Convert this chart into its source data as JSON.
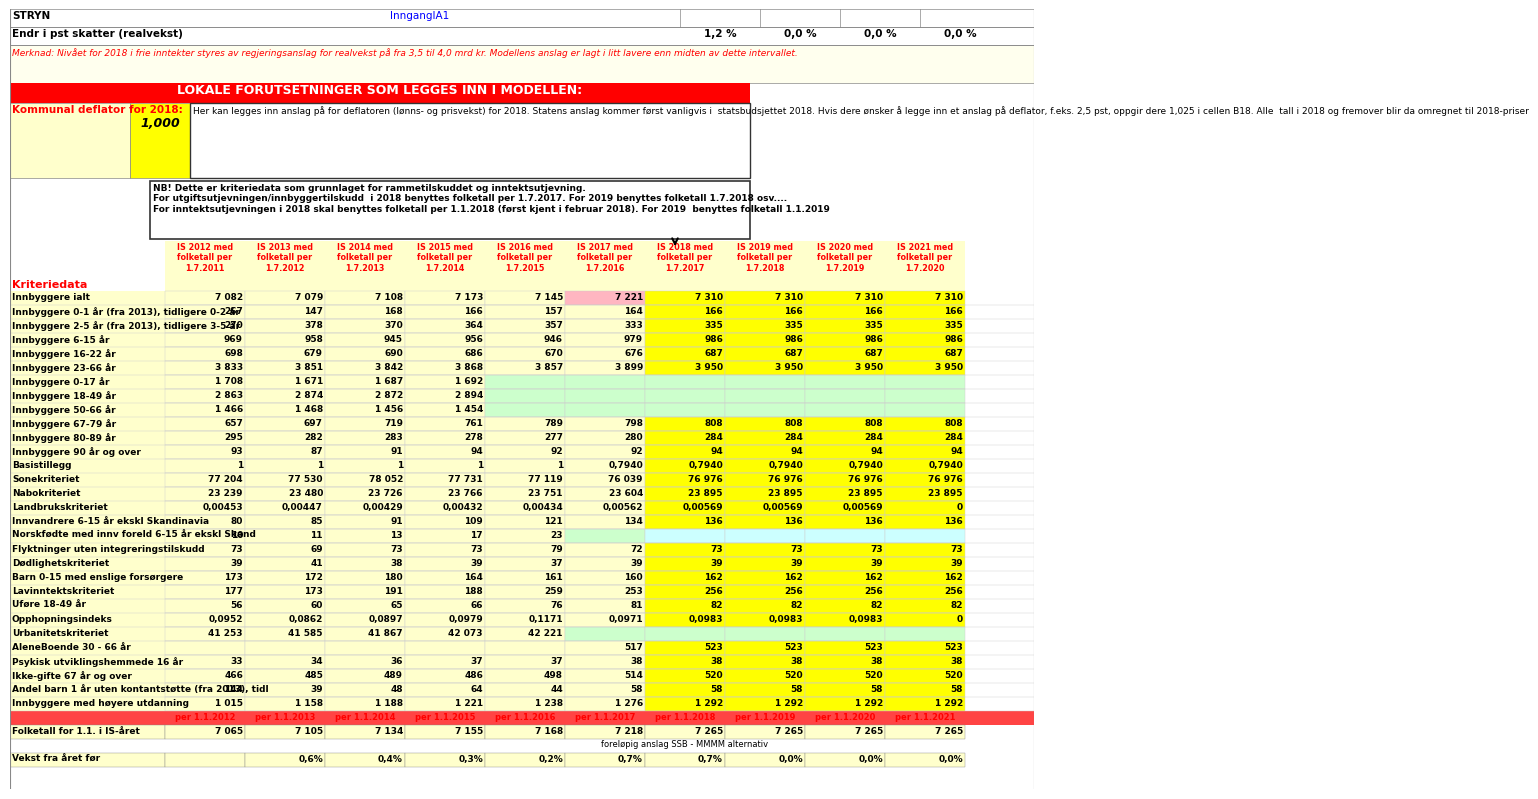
{
  "title_left": "STRYN",
  "title_link": "InnganglA1",
  "row1_label": "Endr i pst skatter (realvekst)",
  "row1_values": [
    "",
    "",
    "",
    "",
    "",
    "1,2 %",
    "0,0 %",
    "0,0 %",
    "0,0 %"
  ],
  "merknad": "Merknad: Nivået for 2018 i frie inntekter styres av regjeringsanslag for realvekst på fra 3,5 til 4,0 mrd kr. Modellens anslag er lagt i litt lavere enn midten av dette intervallet.",
  "red_header": "LOKALE FORUTSETNINGER SOM LEGGES INN I MODELLEN:",
  "deflator_label": "Kommunal deflator for 2018:",
  "deflator_value": "1,000",
  "deflator_text": "Her kan legges inn anslag på for deflatoren (lønns- og prisvekst) for 2018. Statens anslag kommer først vanligvis i  statsbudsjettet 2018. Hvis dere ønsker å legge inn et anslag på deflator, f.eks. 2,5 pst, oppgir dere 1,025 i cellen B18. Alle  tall i 2018 og fremover blir da omregnet til 2018-priser",
  "nb_text": "NB! Dette er kriteriedata som grunnlaget for rammetilskuddet og inntektsutjevning.\nFor utgiftsutjevningen/innbyggertilskudd  i 2018 benyttes folketall per 1.7.2017. For 2019 benyttes folketall 1.7.2018 osv....\nFor inntektsutjevningen i 2018 skal benyttes folketall per 1.1.2018 (først kjent i februar 2018). For 2019  benyttes folketall 1.1.2019",
  "col_headers": [
    "IS 2012 med\nfolketall per\n1.7.2011",
    "IS 2013 med\nfolketall per\n1.7.2012",
    "IS 2014 med\nfolketall per\n1.7.2013",
    "IS 2015 med\nfolketall per\n1.7.2014",
    "IS 2016 med\nfolketall per\n1.7.2015",
    "IS 2017 med\nfolketall per\n1.7.2016",
    "IS 2018 med\nfolketall per\n1.7.2017",
    "IS 2019 med\nfolketall per\n1.7.2018",
    "IS 2020 med\nfolketall per\n1.7.2019",
    "IS 2021 med\nfolketall per\n1.7.2020"
  ],
  "section_label": "Kriteriedata",
  "rows": [
    {
      "label": "Innbyggere ialt",
      "vals": [
        "7 082",
        "7 079",
        "7 108",
        "7 173",
        "7 145",
        "7 221",
        "7 310",
        "7 310",
        "7 310",
        "7 310"
      ],
      "bg": [
        "lightyellow",
        "lightyellow",
        "lightyellow",
        "lightyellow",
        "lightyellow",
        "pink",
        "yellow",
        "yellow",
        "yellow",
        "yellow"
      ]
    },
    {
      "label": "Innbyggere 0-1 år (fra 2013), tidligere 0-2 år",
      "vals": [
        "267",
        "147",
        "168",
        "166",
        "157",
        "164",
        "166",
        "166",
        "166",
        "166"
      ],
      "bg": [
        "lightyellow",
        "lightyellow",
        "lightyellow",
        "lightyellow",
        "lightyellow",
        "lightyellow",
        "yellow",
        "yellow",
        "yellow",
        "yellow"
      ]
    },
    {
      "label": "Innbyggere 2-5 år (fra 2013), tidligere 3-5 år",
      "vals": [
        "270",
        "378",
        "370",
        "364",
        "357",
        "333",
        "335",
        "335",
        "335",
        "335"
      ],
      "bg": [
        "lightyellow",
        "lightyellow",
        "lightyellow",
        "lightyellow",
        "lightyellow",
        "lightyellow",
        "yellow",
        "yellow",
        "yellow",
        "yellow"
      ]
    },
    {
      "label": "Innbyggere 6-15 år",
      "vals": [
        "969",
        "958",
        "945",
        "956",
        "946",
        "979",
        "986",
        "986",
        "986",
        "986"
      ],
      "bg": [
        "lightyellow",
        "lightyellow",
        "lightyellow",
        "lightyellow",
        "lightyellow",
        "lightyellow",
        "yellow",
        "yellow",
        "yellow",
        "yellow"
      ]
    },
    {
      "label": "Innbyggere 16-22 år",
      "vals": [
        "698",
        "679",
        "690",
        "686",
        "670",
        "676",
        "687",
        "687",
        "687",
        "687"
      ],
      "bg": [
        "lightyellow",
        "lightyellow",
        "lightyellow",
        "lightyellow",
        "lightyellow",
        "lightyellow",
        "yellow",
        "yellow",
        "yellow",
        "yellow"
      ]
    },
    {
      "label": "Innbyggere 23-66 år",
      "vals": [
        "3 833",
        "3 851",
        "3 842",
        "3 868",
        "3 857",
        "3 899",
        "3 950",
        "3 950",
        "3 950",
        "3 950"
      ],
      "bg": [
        "lightyellow",
        "lightyellow",
        "lightyellow",
        "lightyellow",
        "lightyellow",
        "lightyellow",
        "yellow",
        "yellow",
        "yellow",
        "yellow"
      ]
    },
    {
      "label": "Innbyggere 0-17 år",
      "vals": [
        "1 708",
        "1 671",
        "1 687",
        "1 692",
        "",
        "",
        "",
        "",
        "",
        ""
      ],
      "bg": [
        "lightyellow",
        "lightyellow",
        "lightyellow",
        "lightyellow",
        "lightgreen",
        "lightgreen",
        "lightgreen",
        "lightgreen",
        "lightgreen",
        "lightgreen"
      ]
    },
    {
      "label": "Innbyggere 18-49 år",
      "vals": [
        "2 863",
        "2 874",
        "2 872",
        "2 894",
        "",
        "",
        "",
        "",
        "",
        ""
      ],
      "bg": [
        "lightyellow",
        "lightyellow",
        "lightyellow",
        "lightyellow",
        "lightgreen",
        "lightgreen",
        "lightgreen",
        "lightgreen",
        "lightgreen",
        "lightgreen"
      ]
    },
    {
      "label": "Innbyggere 50-66 år",
      "vals": [
        "1 466",
        "1 468",
        "1 456",
        "1 454",
        "",
        "",
        "",
        "",
        "",
        ""
      ],
      "bg": [
        "lightyellow",
        "lightyellow",
        "lightyellow",
        "lightyellow",
        "lightgreen",
        "lightgreen",
        "lightgreen",
        "lightgreen",
        "lightgreen",
        "lightgreen"
      ]
    },
    {
      "label": "Innbyggere 67-79 år",
      "vals": [
        "657",
        "697",
        "719",
        "761",
        "789",
        "798",
        "808",
        "808",
        "808",
        "808"
      ],
      "bg": [
        "lightyellow",
        "lightyellow",
        "lightyellow",
        "lightyellow",
        "lightyellow",
        "lightyellow",
        "yellow",
        "yellow",
        "yellow",
        "yellow"
      ]
    },
    {
      "label": "Innbyggere 80-89 år",
      "vals": [
        "295",
        "282",
        "283",
        "278",
        "277",
        "280",
        "284",
        "284",
        "284",
        "284"
      ],
      "bg": [
        "lightyellow",
        "lightyellow",
        "lightyellow",
        "lightyellow",
        "lightyellow",
        "lightyellow",
        "yellow",
        "yellow",
        "yellow",
        "yellow"
      ]
    },
    {
      "label": "Innbyggere 90 år og over",
      "vals": [
        "93",
        "87",
        "91",
        "94",
        "92",
        "92",
        "94",
        "94",
        "94",
        "94"
      ],
      "bg": [
        "lightyellow",
        "lightyellow",
        "lightyellow",
        "lightyellow",
        "lightyellow",
        "lightyellow",
        "yellow",
        "yellow",
        "yellow",
        "yellow"
      ]
    },
    {
      "label": "Basistillegg",
      "vals": [
        "1",
        "1",
        "1",
        "1",
        "1",
        "0,7940",
        "0,7940",
        "0,7940",
        "0,7940",
        "0,7940"
      ],
      "bg": [
        "lightyellow",
        "lightyellow",
        "lightyellow",
        "lightyellow",
        "lightyellow",
        "lightyellow",
        "yellow",
        "yellow",
        "yellow",
        "yellow"
      ]
    },
    {
      "label": "Sonekriteriet",
      "vals": [
        "77 204",
        "77 530",
        "78 052",
        "77 731",
        "77 119",
        "76 039",
        "76 976",
        "76 976",
        "76 976",
        "76 976"
      ],
      "bg": [
        "lightyellow",
        "lightyellow",
        "lightyellow",
        "lightyellow",
        "lightyellow",
        "lightyellow",
        "yellow",
        "yellow",
        "yellow",
        "yellow"
      ]
    },
    {
      "label": "Nabokriteriet",
      "vals": [
        "23 239",
        "23 480",
        "23 726",
        "23 766",
        "23 751",
        "23 604",
        "23 895",
        "23 895",
        "23 895",
        "23 895"
      ],
      "bg": [
        "lightyellow",
        "lightyellow",
        "lightyellow",
        "lightyellow",
        "lightyellow",
        "lightyellow",
        "yellow",
        "yellow",
        "yellow",
        "yellow"
      ]
    },
    {
      "label": "Landbrukskriteriet",
      "vals": [
        "0,00453",
        "0,00447",
        "0,00429",
        "0,00432",
        "0,00434",
        "0,00562",
        "0,00569",
        "0,00569",
        "0,00569",
        "0"
      ],
      "bg": [
        "lightyellow",
        "lightyellow",
        "lightyellow",
        "lightyellow",
        "lightyellow",
        "lightyellow",
        "yellow",
        "yellow",
        "yellow",
        "yellow"
      ]
    },
    {
      "label": "Innvandrere 6-15 år ekskl Skandinavia",
      "vals": [
        "80",
        "85",
        "91",
        "109",
        "121",
        "134",
        "136",
        "136",
        "136",
        "136"
      ],
      "bg": [
        "lightyellow",
        "lightyellow",
        "lightyellow",
        "lightyellow",
        "lightyellow",
        "lightyellow",
        "yellow",
        "yellow",
        "yellow",
        "yellow"
      ]
    },
    {
      "label": "Norskfødte med innv foreld 6-15 år ekskl Skand",
      "vals": [
        "10",
        "11",
        "13",
        "17",
        "23",
        "",
        "",
        "",
        "",
        ""
      ],
      "bg": [
        "lightyellow",
        "lightyellow",
        "lightyellow",
        "lightyellow",
        "lightyellow",
        "lightgreen",
        "lightcyan",
        "lightcyan",
        "lightcyan",
        "lightcyan"
      ]
    },
    {
      "label": "Flyktninger uten integreringstilskudd",
      "vals": [
        "73",
        "69",
        "73",
        "73",
        "79",
        "72",
        "73",
        "73",
        "73",
        "73"
      ],
      "bg": [
        "lightyellow",
        "lightyellow",
        "lightyellow",
        "lightyellow",
        "lightyellow",
        "lightyellow",
        "yellow",
        "yellow",
        "yellow",
        "yellow"
      ]
    },
    {
      "label": "Dødlighetskriteriet",
      "vals": [
        "39",
        "41",
        "38",
        "39",
        "37",
        "39",
        "39",
        "39",
        "39",
        "39"
      ],
      "bg": [
        "lightyellow",
        "lightyellow",
        "lightyellow",
        "lightyellow",
        "lightyellow",
        "lightyellow",
        "yellow",
        "yellow",
        "yellow",
        "yellow"
      ]
    },
    {
      "label": "Barn 0-15 med enslige forsørgere",
      "vals": [
        "173",
        "172",
        "180",
        "164",
        "161",
        "160",
        "162",
        "162",
        "162",
        "162"
      ],
      "bg": [
        "lightyellow",
        "lightyellow",
        "lightyellow",
        "lightyellow",
        "lightyellow",
        "lightyellow",
        "yellow",
        "yellow",
        "yellow",
        "yellow"
      ]
    },
    {
      "label": "Lavinntektskriteriet",
      "vals": [
        "177",
        "173",
        "191",
        "188",
        "259",
        "253",
        "256",
        "256",
        "256",
        "256"
      ],
      "bg": [
        "lightyellow",
        "lightyellow",
        "lightyellow",
        "lightyellow",
        "lightyellow",
        "lightyellow",
        "yellow",
        "yellow",
        "yellow",
        "yellow"
      ]
    },
    {
      "label": "Uføre 18-49 år",
      "vals": [
        "56",
        "60",
        "65",
        "66",
        "76",
        "81",
        "82",
        "82",
        "82",
        "82"
      ],
      "bg": [
        "lightyellow",
        "lightyellow",
        "lightyellow",
        "lightyellow",
        "lightyellow",
        "lightyellow",
        "yellow",
        "yellow",
        "yellow",
        "yellow"
      ]
    },
    {
      "label": "Opphopningsindeks",
      "vals": [
        "0,0952",
        "0,0862",
        "0,0897",
        "0,0979",
        "0,1171",
        "0,0971",
        "0,0983",
        "0,0983",
        "0,0983",
        "0"
      ],
      "bg": [
        "lightyellow",
        "lightyellow",
        "lightyellow",
        "lightyellow",
        "lightyellow",
        "lightyellow",
        "yellow",
        "yellow",
        "yellow",
        "yellow"
      ]
    },
    {
      "label": "Urbanitetskriteriet",
      "vals": [
        "41 253",
        "41 585",
        "41 867",
        "42 073",
        "42 221",
        "",
        "",
        "",
        "",
        ""
      ],
      "bg": [
        "lightyellow",
        "lightyellow",
        "lightyellow",
        "lightyellow",
        "lightyellow",
        "lightgreen",
        "lightgreen",
        "lightgreen",
        "lightgreen",
        "lightgreen"
      ]
    },
    {
      "label": "AleneBoende 30 - 66 år",
      "vals": [
        "",
        "",
        "",
        "",
        "",
        "517",
        "523",
        "523",
        "523",
        "523"
      ],
      "bg": [
        "lightyellow",
        "lightyellow",
        "lightyellow",
        "lightyellow",
        "lightyellow",
        "lightyellow",
        "yellow",
        "yellow",
        "yellow",
        "yellow"
      ]
    },
    {
      "label": "Psykisk utviklingshemmede 16 år",
      "vals": [
        "33",
        "34",
        "36",
        "37",
        "37",
        "38",
        "38",
        "38",
        "38",
        "38"
      ],
      "bg": [
        "lightyellow",
        "lightyellow",
        "lightyellow",
        "lightyellow",
        "lightyellow",
        "lightyellow",
        "yellow",
        "yellow",
        "yellow",
        "yellow"
      ]
    },
    {
      "label": "Ikke-gifte 67 år og over",
      "vals": [
        "466",
        "485",
        "489",
        "486",
        "498",
        "514",
        "520",
        "520",
        "520",
        "520"
      ],
      "bg": [
        "lightyellow",
        "lightyellow",
        "lightyellow",
        "lightyellow",
        "lightyellow",
        "lightyellow",
        "yellow",
        "yellow",
        "yellow",
        "yellow"
      ]
    },
    {
      "label": "Andel barn 1 år uten kontantstøtte (fra 2013), tidl",
      "vals": [
        "144",
        "39",
        "48",
        "64",
        "44",
        "58",
        "58",
        "58",
        "58",
        "58"
      ],
      "bg": [
        "lightyellow",
        "lightyellow",
        "lightyellow",
        "lightyellow",
        "lightyellow",
        "lightyellow",
        "yellow",
        "yellow",
        "yellow",
        "yellow"
      ]
    },
    {
      "label": "Innbyggere med høyere utdanning",
      "vals": [
        "1 015",
        "1 158",
        "1 188",
        "1 221",
        "1 238",
        "1 276",
        "1 292",
        "1 292",
        "1 292",
        "1 292"
      ],
      "bg": [
        "lightyellow",
        "lightyellow",
        "lightyellow",
        "lightyellow",
        "lightyellow",
        "lightyellow",
        "yellow",
        "yellow",
        "yellow",
        "yellow"
      ]
    }
  ],
  "footer_row_label": [
    "per 1.1.2012",
    "per 1.1.2013",
    "per 1.1.2014",
    "per 1.1.2015",
    "per 1.1.2016",
    "per 1.1.2017",
    "per 1.1.2018",
    "per 1.1.2019",
    "per 1.1.2020",
    "per 1.1.2021"
  ],
  "footer_row2_label": "Folketall for 1.1. i IS-året",
  "footer_row2_vals": [
    "7 065",
    "7 105",
    "7 134",
    "7 155",
    "7 168",
    "7 218",
    "7 265",
    "7 265",
    "7 265",
    "7 265"
  ],
  "footer_row3_label": "Vekst fra året før",
  "footer_row3_vals": [
    "",
    "0,6%",
    "0,4%",
    "0,3%",
    "0,2%",
    "0,7%",
    "0,7%",
    "0,0%",
    "0,0%",
    "0,0%"
  ],
  "ssb_note": "foreløpig anslag SSB - MMMM alternativ",
  "bg_top": "#FFFFFF",
  "bg_yellow": "#FFFF00",
  "bg_lightyellow": "#FFFFCC",
  "bg_lightgreen": "#CCFFCC",
  "bg_red_header": "#FF0000",
  "text_red": "#FF0000",
  "text_dark": "#000000"
}
